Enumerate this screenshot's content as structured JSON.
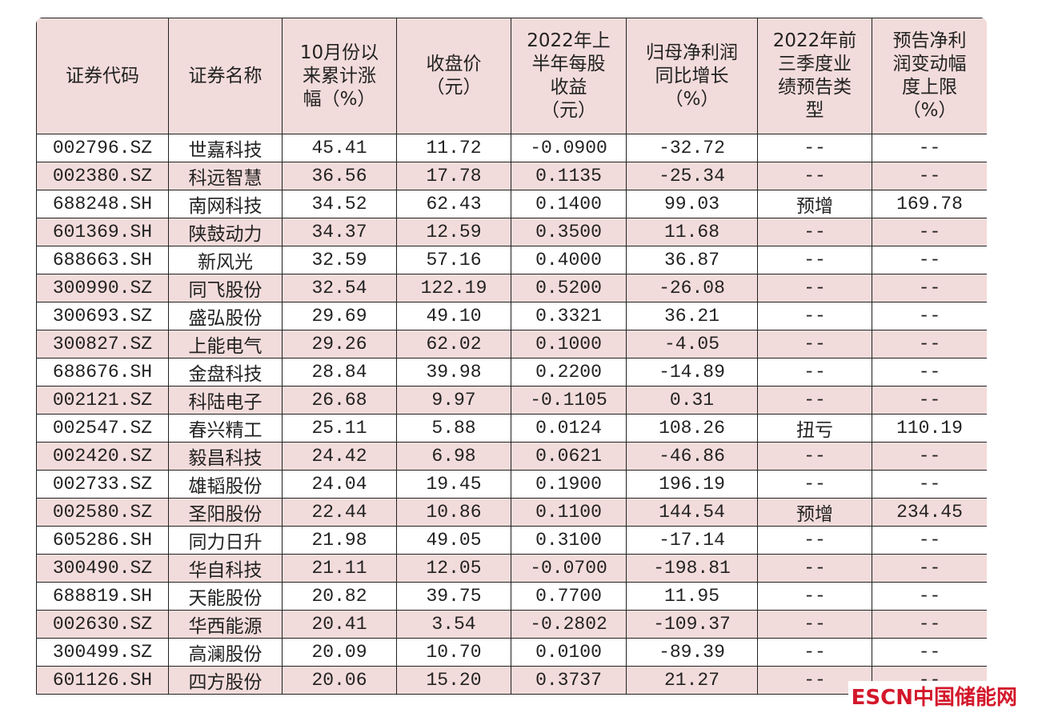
{
  "table": {
    "header": [
      "证券代码",
      "证券名称",
      "10月份以\n来累计涨\n幅（%）",
      "收盘价\n（元）",
      "2022年上\n半年每股\n收益\n（元）",
      "归母净利润\n同比增长\n（%）",
      "2022年前\n三季度业\n绩预告类\n型",
      "预告净利\n润变动幅\n度上限\n（%）"
    ],
    "rows": [
      [
        "002796.SZ",
        "世嘉科技",
        "45.41",
        "11.72",
        "-0.0900",
        "-32.72",
        "--",
        "--"
      ],
      [
        "002380.SZ",
        "科远智慧",
        "36.56",
        "17.78",
        "0.1135",
        "-25.34",
        "--",
        "--"
      ],
      [
        "688248.SH",
        "南网科技",
        "34.52",
        "62.43",
        "0.1400",
        "99.03",
        "预增",
        "169.78"
      ],
      [
        "601369.SH",
        "陕鼓动力",
        "34.37",
        "12.59",
        "0.3500",
        "11.68",
        "--",
        "--"
      ],
      [
        "688663.SH",
        "新风光",
        "32.59",
        "57.16",
        "0.4000",
        "36.87",
        "--",
        "--"
      ],
      [
        "300990.SZ",
        "同飞股份",
        "32.54",
        "122.19",
        "0.5200",
        "-26.08",
        "--",
        "--"
      ],
      [
        "300693.SZ",
        "盛弘股份",
        "29.69",
        "49.10",
        "0.3321",
        "36.21",
        "--",
        "--"
      ],
      [
        "300827.SZ",
        "上能电气",
        "29.26",
        "62.02",
        "0.1000",
        "-4.05",
        "--",
        "--"
      ],
      [
        "688676.SH",
        "金盘科技",
        "28.84",
        "39.98",
        "0.2200",
        "-14.89",
        "--",
        "--"
      ],
      [
        "002121.SZ",
        "科陆电子",
        "26.68",
        "9.97",
        "-0.1105",
        "0.31",
        "--",
        "--"
      ],
      [
        "002547.SZ",
        "春兴精工",
        "25.11",
        "5.88",
        "0.0124",
        "108.26",
        "扭亏",
        "110.19"
      ],
      [
        "002420.SZ",
        "毅昌科技",
        "24.42",
        "6.98",
        "0.0621",
        "-46.86",
        "--",
        "--"
      ],
      [
        "002733.SZ",
        "雄韬股份",
        "24.04",
        "19.45",
        "0.1900",
        "196.19",
        "--",
        "--"
      ],
      [
        "002580.SZ",
        "圣阳股份",
        "22.44",
        "10.86",
        "0.1100",
        "144.54",
        "预增",
        "234.45"
      ],
      [
        "605286.SH",
        "同力日升",
        "21.98",
        "49.05",
        "0.3100",
        "-17.14",
        "--",
        "--"
      ],
      [
        "300490.SZ",
        "华自科技",
        "21.11",
        "12.05",
        "-0.0700",
        "-198.81",
        "--",
        "--"
      ],
      [
        "688819.SH",
        "天能股份",
        "20.82",
        "39.75",
        "0.7700",
        "11.95",
        "--",
        "--"
      ],
      [
        "002630.SZ",
        "华西能源",
        "20.41",
        "3.54",
        "-0.2802",
        "-109.37",
        "--",
        "--"
      ],
      [
        "300499.SZ",
        "高澜股份",
        "20.09",
        "10.70",
        "0.0100",
        "-89.39",
        "--",
        "--"
      ],
      [
        "601126.SH",
        "四方股份",
        "20.06",
        "15.20",
        "0.3737",
        "21.27",
        "--",
        "--"
      ]
    ]
  },
  "watermark": {
    "brand": "ESCN",
    "name": "中国储能网"
  }
}
